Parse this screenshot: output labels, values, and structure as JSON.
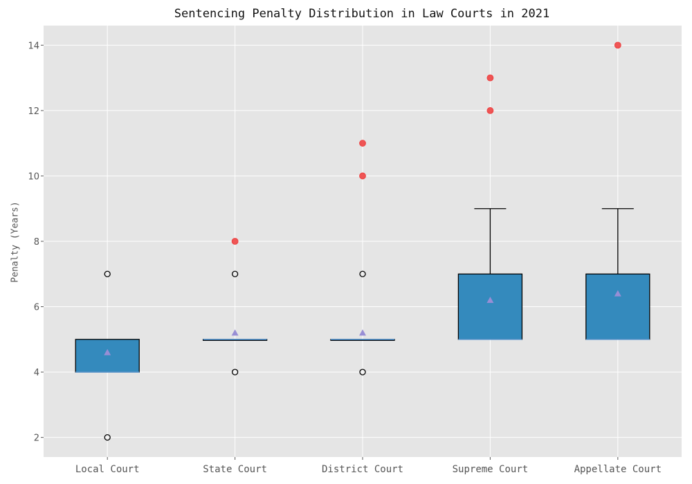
{
  "chart_data": {
    "type": "box",
    "title": "Sentencing Penalty Distribution in Law Courts in 2021",
    "xlabel": "",
    "ylabel": "Penalty (Years)",
    "ylim": [
      1.4,
      14.6
    ],
    "yticks": [
      2,
      4,
      6,
      8,
      10,
      12,
      14
    ],
    "grid": true,
    "colors": {
      "background": "#e5e5e5",
      "grid": "#ffffff",
      "box_fill": "#348abd",
      "box_edge": "#000000",
      "median": "#5b9bd5",
      "mean_marker": "#988ed5",
      "outlier_red": "#ee3a3a",
      "flier_edge": "#000000"
    },
    "categories": [
      "Local Court",
      "State Court",
      "District Court",
      "Supreme Court",
      "Appellate Court"
    ],
    "boxes": [
      {
        "q1": 4,
        "median": 4,
        "q3": 5,
        "whisker_low": 4,
        "whisker_high": 5,
        "mean": 4.6,
        "fliers": [
          2,
          7
        ],
        "outliers": []
      },
      {
        "q1": 5,
        "median": 5,
        "q3": 5,
        "whisker_low": 5,
        "whisker_high": 5,
        "mean": 5.2,
        "fliers": [
          4,
          7
        ],
        "outliers": [
          8
        ]
      },
      {
        "q1": 5,
        "median": 5,
        "q3": 5,
        "whisker_low": 5,
        "whisker_high": 5,
        "mean": 5.2,
        "fliers": [
          4,
          7
        ],
        "outliers": [
          10,
          11
        ]
      },
      {
        "q1": 5,
        "median": 5,
        "q3": 7,
        "whisker_low": 5,
        "whisker_high": 9,
        "mean": 6.2,
        "fliers": [],
        "outliers": [
          12,
          13
        ]
      },
      {
        "q1": 5,
        "median": 5,
        "q3": 7,
        "whisker_low": 5,
        "whisker_high": 9,
        "mean": 6.4,
        "fliers": [],
        "outliers": [
          14
        ]
      }
    ]
  }
}
